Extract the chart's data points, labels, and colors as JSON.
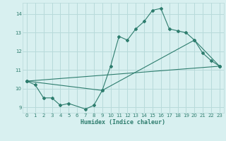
{
  "xlabel": "Humidex (Indice chaleur)",
  "bg_color": "#d8f0f0",
  "grid_color": "#b8dada",
  "line_color": "#2e7d6e",
  "xlim": [
    -0.5,
    23.5
  ],
  "ylim": [
    8.7,
    14.6
  ],
  "yticks": [
    9,
    10,
    11,
    12,
    13,
    14
  ],
  "xticks": [
    0,
    1,
    2,
    3,
    4,
    5,
    6,
    7,
    8,
    9,
    10,
    11,
    12,
    13,
    14,
    15,
    16,
    17,
    18,
    19,
    20,
    21,
    22,
    23
  ],
  "line1_x": [
    0,
    1,
    2,
    3,
    4,
    5,
    7,
    8,
    9,
    10,
    11,
    12,
    13,
    14,
    15,
    16,
    17,
    18,
    19,
    20,
    21,
    22,
    23
  ],
  "line1_y": [
    10.4,
    10.2,
    9.5,
    9.5,
    9.1,
    9.2,
    8.9,
    9.1,
    9.9,
    11.2,
    12.8,
    12.6,
    13.2,
    13.6,
    14.2,
    14.3,
    13.2,
    13.1,
    13.0,
    12.6,
    11.9,
    11.5,
    11.2
  ],
  "line2_x": [
    0,
    9,
    20,
    23
  ],
  "line2_y": [
    10.4,
    9.9,
    12.6,
    11.2
  ],
  "line3_x": [
    0,
    23
  ],
  "line3_y": [
    10.4,
    11.2
  ]
}
